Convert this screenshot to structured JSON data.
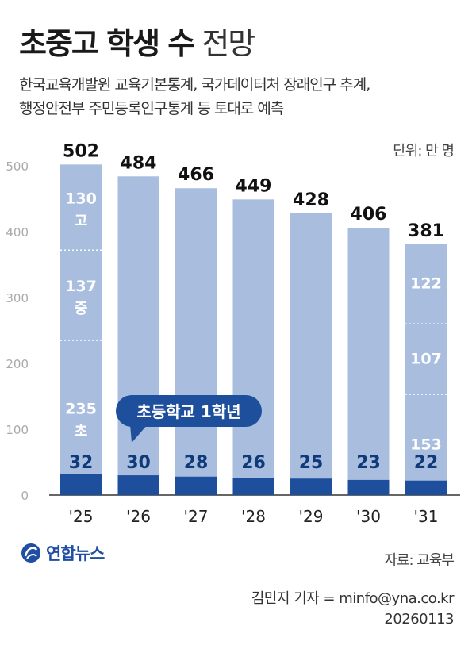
{
  "header": {
    "title_bold": "초중고 학생 수",
    "title_light": "전망",
    "subtitle_lines": [
      "한국교육개발원 교육기본통계, 국가데이터처 장래인구 추계,",
      "행정안전부 주민등록인구통계 등 토대로 예측"
    ],
    "unit": "단위: 만 명"
  },
  "callout": "초등학교 1학년",
  "colors": {
    "bar": "#a9bedf",
    "first_grade": "#1e4f9c",
    "value_text_light": "#ffffff",
    "value_text_dark": "#0f3a7a",
    "axis_text": "#aaaaaa",
    "total_text": "#111111"
  },
  "chart_data": {
    "type": "bar",
    "categories": [
      "'25",
      "'26",
      "'27",
      "'28",
      "'29",
      "'30",
      "'31"
    ],
    "ylim": [
      0,
      500
    ],
    "y_ticks": [
      0,
      100,
      200,
      300,
      400,
      500
    ],
    "totals": [
      502,
      484,
      466,
      449,
      428,
      406,
      381
    ],
    "first_grade": [
      32,
      30,
      28,
      26,
      25,
      23,
      22
    ],
    "segments": [
      {
        "name": "고",
        "values": [
          130,
          null,
          null,
          null,
          null,
          null,
          122
        ]
      },
      {
        "name": "중",
        "values": [
          137,
          null,
          null,
          null,
          null,
          null,
          107
        ]
      },
      {
        "name": "초",
        "values": [
          235,
          null,
          null,
          null,
          null,
          null,
          153
        ]
      }
    ],
    "grid": false,
    "xlabel": "",
    "ylabel": ""
  },
  "footer": {
    "logo_text": "연합뉴스",
    "source": "자료: 교육부",
    "credit_line1": "김민지 기자 = minfo@yna.co.kr",
    "credit_line2": "20260113"
  }
}
